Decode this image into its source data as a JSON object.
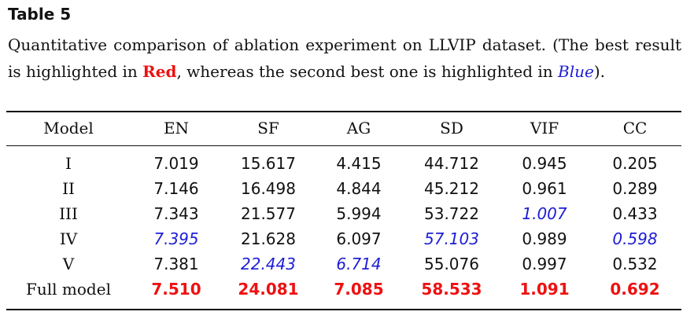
{
  "table_label": "Table 5",
  "caption": {
    "before": "Quantitative comparison of ablation experiment on LLVIP dataset. (The best result is highlighted in ",
    "red_word": "Red",
    "middle": ", whereas the second best one is highlighted in ",
    "blue_word": "Blue",
    "after": ")."
  },
  "columns": [
    "Model",
    "EN",
    "SF",
    "AG",
    "SD",
    "VIF",
    "CC"
  ],
  "rows": [
    [
      "I",
      "7.019",
      "15.617",
      "4.415",
      "44.712",
      "0.945",
      "0.205"
    ],
    [
      "II",
      "7.146",
      "16.498",
      "4.844",
      "45.212",
      "0.961",
      "0.289"
    ],
    [
      "III",
      "7.343",
      "21.577",
      "5.994",
      "53.722",
      "1.007",
      "0.433"
    ],
    [
      "IV",
      "7.395",
      "21.628",
      "6.097",
      "57.103",
      "0.989",
      "0.598"
    ],
    [
      "V",
      "7.381",
      "22.443",
      "6.714",
      "55.076",
      "0.997",
      "0.532"
    ],
    [
      "Full model",
      "7.510",
      "24.081",
      "7.085",
      "58.533",
      "1.091",
      "0.692"
    ]
  ],
  "highlight": {
    "best_color": "#ee1111",
    "second_color": "#1d1dd6",
    "best_cells": [
      [
        5,
        1
      ],
      [
        5,
        2
      ],
      [
        5,
        3
      ],
      [
        5,
        4
      ],
      [
        5,
        5
      ],
      [
        5,
        6
      ]
    ],
    "second_cells": [
      [
        3,
        1
      ],
      [
        4,
        2
      ],
      [
        4,
        3
      ],
      [
        3,
        4
      ],
      [
        2,
        5
      ],
      [
        3,
        6
      ]
    ]
  }
}
